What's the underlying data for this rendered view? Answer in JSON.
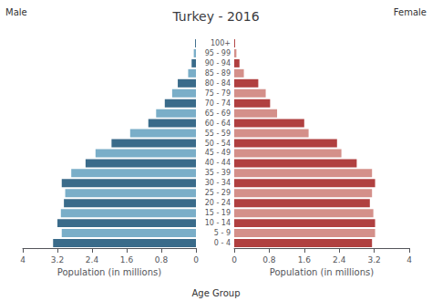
{
  "chart_data": {
    "type": "bar",
    "orientation": "horizontal",
    "title": "Turkey - 2016",
    "xlabel": "Population (in millions)",
    "ylabel": "Age Group",
    "categories": [
      "0 - 4",
      "5 - 9",
      "10 - 14",
      "15 - 19",
      "20 - 24",
      "25 - 29",
      "30 - 34",
      "35 - 39",
      "40 - 44",
      "45 - 49",
      "50 - 54",
      "55 - 59",
      "60 - 64",
      "65 - 69",
      "70 - 74",
      "75 - 79",
      "80 - 84",
      "85 - 89",
      "90 - 94",
      "95 - 99",
      "100+"
    ],
    "series": [
      {
        "name": "Male",
        "values": [
          3.3,
          3.1,
          3.2,
          3.12,
          3.05,
          3.02,
          3.1,
          2.88,
          2.55,
          2.32,
          1.95,
          1.52,
          1.1,
          0.92,
          0.72,
          0.55,
          0.42,
          0.18,
          0.1,
          0.05,
          0.02
        ],
        "colors": [
          "#3a6b8a",
          "#7aaec8",
          "#3a6b8a",
          "#7aaec8",
          "#3a6b8a",
          "#7aaec8",
          "#3a6b8a",
          "#7aaec8",
          "#3a6b8a",
          "#7aaec8",
          "#3a6b8a",
          "#7aaec8",
          "#3a6b8a",
          "#7aaec8",
          "#3a6b8a",
          "#7aaec8",
          "#3a6b8a",
          "#7aaec8",
          "#3a6b8a",
          "#7aaec8",
          "#3a6b8a"
        ]
      },
      {
        "name": "Female",
        "values": [
          3.15,
          3.22,
          3.22,
          3.18,
          3.1,
          3.15,
          3.22,
          3.15,
          2.8,
          2.45,
          2.35,
          1.7,
          1.6,
          0.98,
          0.82,
          0.72,
          0.55,
          0.22,
          0.12,
          0.05,
          0.02
        ],
        "colors": [
          "#b04040",
          "#d4908a",
          "#b04040",
          "#d4908a",
          "#b04040",
          "#d4908a",
          "#b04040",
          "#d4908a",
          "#b04040",
          "#d4908a",
          "#b04040",
          "#d4908a",
          "#b04040",
          "#d4908a",
          "#b04040",
          "#d4908a",
          "#b04040",
          "#d4908a",
          "#b04040",
          "#d4908a",
          "#b04040"
        ]
      }
    ],
    "xlim": [
      0,
      4
    ],
    "xticks": [
      0,
      0.8,
      1.6,
      2.4,
      3.2,
      4
    ],
    "grid": false
  }
}
